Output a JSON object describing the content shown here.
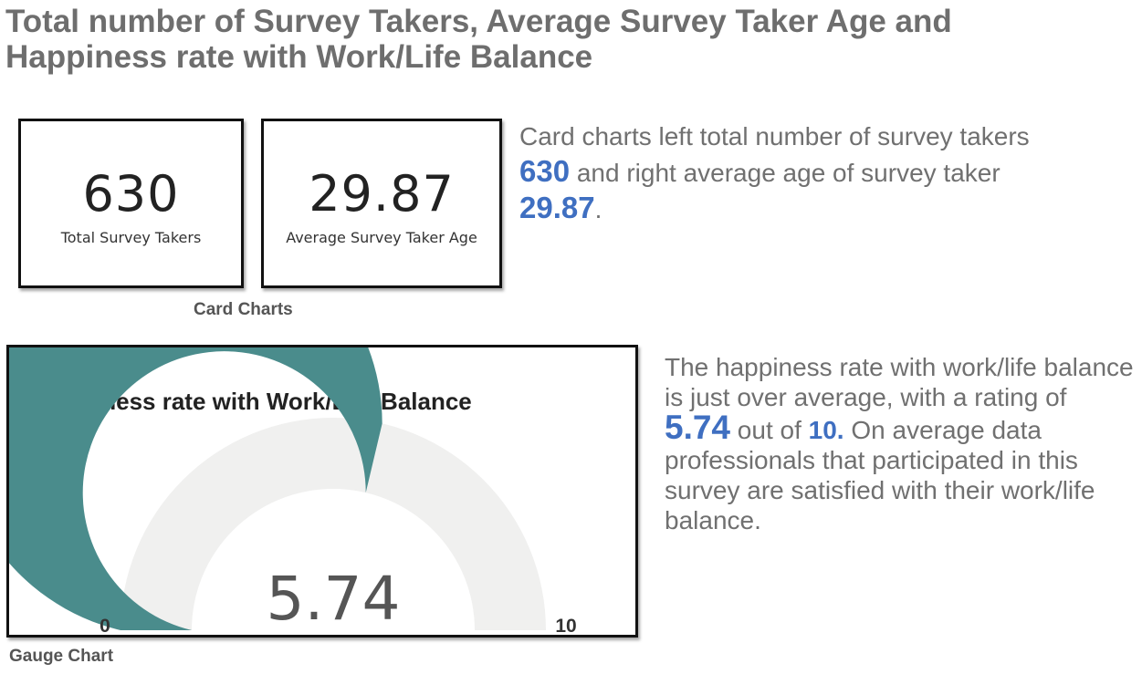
{
  "page": {
    "title": "Total number of Survey Takers, Average Survey Taker Age and Happiness rate with Work/Life Balance"
  },
  "cards": {
    "left": {
      "value": "630",
      "label": "Total Survey Takers"
    },
    "right": {
      "value": "29.87",
      "label": "Average Survey Taker Age"
    },
    "caption": "Card Charts"
  },
  "cards_description": {
    "part1": "Card charts left total number of survey takers",
    "value1": "630",
    "part2": "and right average age of survey taker",
    "value2": "29.87",
    "part3": "."
  },
  "gauge_description": {
    "part1": "The happiness rate with work/life balance is just over average, with a rating of",
    "value": "5.74",
    "part2": "out of",
    "max": "10.",
    "part3": "On average data professionals that participated in this survey are satisfied with their work/life balance."
  },
  "gauge_caption": "Gauge Chart",
  "chart_data": [
    {
      "type": "table",
      "title": "",
      "cards": [
        {
          "label": "Total Survey Takers",
          "value": 630
        },
        {
          "label": "Average Survey Taker Age",
          "value": 29.87
        }
      ]
    },
    {
      "type": "gauge",
      "title": "Happiness rate with Work/Life Balance",
      "value": 5.74,
      "value_label": "5.74",
      "min": 0,
      "max": 10,
      "min_label": "0",
      "max_label": "10",
      "fill_color": "#4a8c8c",
      "track_color": "#f0f0ef"
    }
  ],
  "colors": {
    "title": "#6e6e6e",
    "highlight": "#3f6fc1",
    "gauge_fill": "#4a8c8c",
    "gauge_track": "#f0f0ef"
  }
}
